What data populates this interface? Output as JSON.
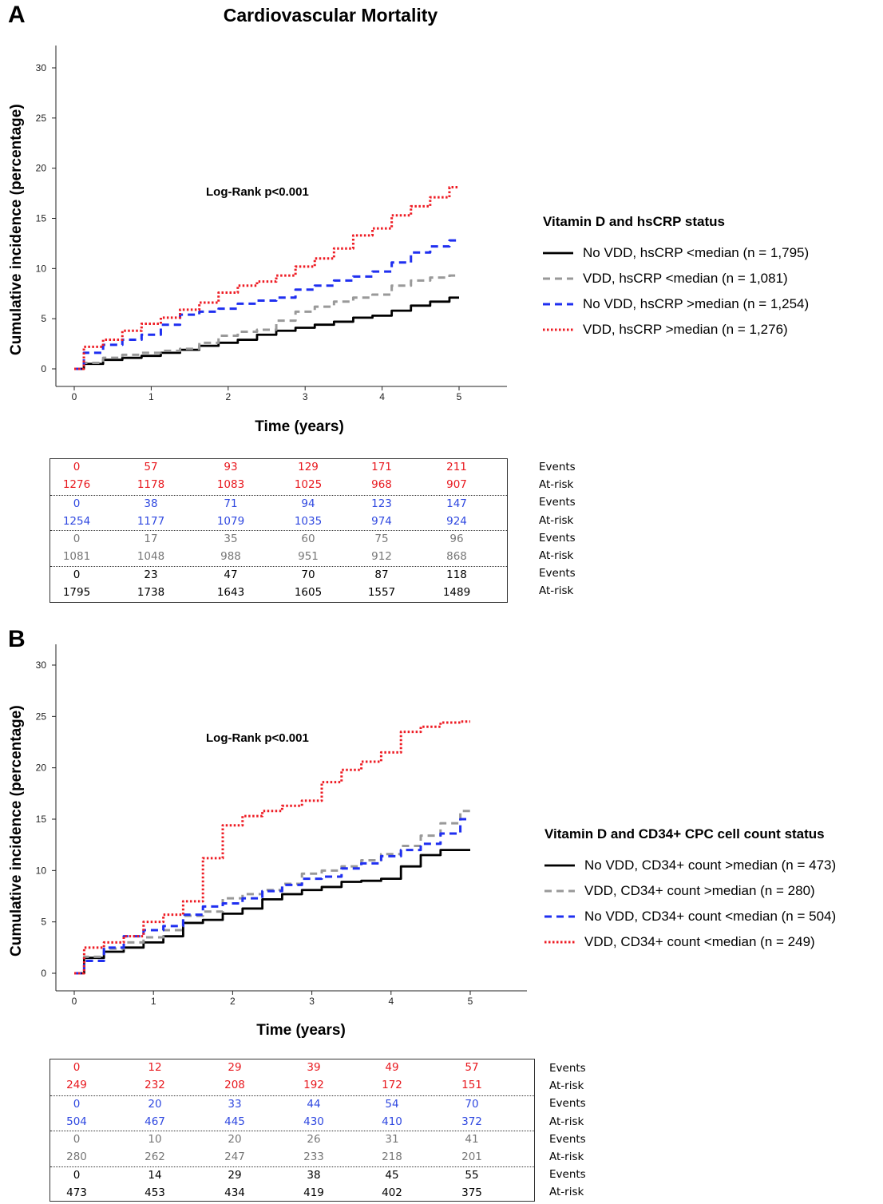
{
  "figure_title": "Cardiovascular Mortality",
  "row_labels": {
    "events": "Events",
    "at_risk": "At-risk"
  },
  "colors": {
    "red": "#ee1c24",
    "blue": "#1f2ff0",
    "gray": "#999999",
    "black": "#000000",
    "table_red": "#e8181e",
    "table_blue": "#2f48e0",
    "table_gray": "#777777"
  },
  "chart_data": [
    {
      "panel": "A",
      "type": "line",
      "subtype": "cumulative-incidence step curves",
      "xlabel": "Time (years)",
      "ylabel": "Cumulative incidence (percentage)",
      "xlim": [
        0,
        5
      ],
      "ylim": [
        0,
        30
      ],
      "xticks": [
        0,
        1,
        2,
        3,
        4,
        5
      ],
      "yticks": [
        0,
        5,
        10,
        15,
        20,
        25,
        30
      ],
      "annotation": "Log-Rank p<0.001",
      "legend_title": "Vitamin D and hsCRP status",
      "legend_position": "right",
      "series": [
        {
          "name": "No VDD, hsCRP <median (n = 1,795)",
          "color": "black",
          "style": "solid",
          "x": [
            0,
            0.25,
            0.5,
            0.75,
            1,
            1.25,
            1.5,
            1.75,
            2,
            2.25,
            2.5,
            2.75,
            3,
            3.25,
            3.5,
            3.75,
            4,
            4.25,
            4.5,
            4.75,
            5
          ],
          "y": [
            0,
            0.5,
            0.9,
            1.1,
            1.3,
            1.6,
            1.9,
            2.3,
            2.6,
            2.9,
            3.4,
            3.8,
            4.1,
            4.4,
            4.7,
            5.1,
            5.3,
            5.8,
            6.3,
            6.7,
            7.1
          ]
        },
        {
          "name": "VDD, hsCRP <median (n = 1,081)",
          "color": "gray",
          "style": "dashed",
          "x": [
            0,
            0.25,
            0.5,
            0.75,
            1,
            1.25,
            1.5,
            1.75,
            2,
            2.25,
            2.5,
            2.75,
            3,
            3.25,
            3.5,
            3.75,
            4,
            4.25,
            4.5,
            4.75,
            5
          ],
          "y": [
            0,
            0.6,
            1.1,
            1.4,
            1.6,
            1.8,
            2.0,
            2.6,
            3.3,
            3.7,
            3.9,
            4.8,
            5.7,
            6.2,
            6.7,
            7.1,
            7.4,
            8.3,
            8.8,
            9.1,
            9.3
          ]
        },
        {
          "name": "No VDD, hsCRP >median (n = 1,254)",
          "color": "blue",
          "style": "dashed",
          "x": [
            0,
            0.25,
            0.5,
            0.75,
            1,
            1.25,
            1.5,
            1.75,
            2,
            2.25,
            2.5,
            2.75,
            3,
            3.25,
            3.5,
            3.75,
            4,
            4.25,
            4.5,
            4.75,
            5
          ],
          "y": [
            0,
            1.6,
            2.4,
            2.9,
            3.4,
            4.4,
            5.4,
            5.7,
            6.0,
            6.5,
            6.8,
            7.1,
            7.9,
            8.3,
            8.8,
            9.2,
            9.7,
            10.6,
            11.6,
            12.2,
            12.8
          ]
        },
        {
          "name": "VDD, hsCRP >median (n = 1,276)",
          "color": "red",
          "style": "dotted",
          "x": [
            0,
            0.25,
            0.5,
            0.75,
            1,
            1.25,
            1.5,
            1.75,
            2,
            2.25,
            2.5,
            2.75,
            3,
            3.25,
            3.5,
            3.75,
            4,
            4.25,
            4.5,
            4.75,
            5
          ],
          "y": [
            0,
            2.2,
            2.9,
            3.8,
            4.5,
            5.1,
            5.9,
            6.6,
            7.6,
            8.3,
            8.7,
            9.3,
            10.2,
            11.0,
            12.0,
            13.3,
            14.0,
            15.3,
            16.2,
            17.1,
            18.1
          ]
        }
      ],
      "risk_table": [
        {
          "color": "table_red",
          "events": [
            0,
            57,
            93,
            129,
            171,
            211
          ],
          "at_risk": [
            1276,
            1178,
            1083,
            1025,
            968,
            907
          ]
        },
        {
          "color": "table_blue",
          "events": [
            0,
            38,
            71,
            94,
            123,
            147
          ],
          "at_risk": [
            1254,
            1177,
            1079,
            1035,
            974,
            924
          ]
        },
        {
          "color": "table_gray",
          "events": [
            0,
            17,
            35,
            60,
            75,
            96
          ],
          "at_risk": [
            1081,
            1048,
            988,
            951,
            912,
            868
          ]
        },
        {
          "color": "black",
          "events": [
            0,
            23,
            47,
            70,
            87,
            118
          ],
          "at_risk": [
            1795,
            1738,
            1643,
            1605,
            1557,
            1489
          ]
        }
      ]
    },
    {
      "panel": "B",
      "type": "line",
      "subtype": "cumulative-incidence step curves",
      "xlabel": "Time (years)",
      "ylabel": "Cumulative incidence (percentage)",
      "xlim": [
        0,
        5
      ],
      "ylim": [
        0,
        30
      ],
      "xticks": [
        0,
        1,
        2,
        3,
        4,
        5
      ],
      "yticks": [
        0,
        5,
        10,
        15,
        20,
        25,
        30
      ],
      "annotation": "Log-Rank p<0.001",
      "legend_title": "Vitamin D and CD34+ CPC cell count status",
      "legend_position": "right",
      "series": [
        {
          "name": "No VDD, CD34+ count >median (n = 473)",
          "color": "black",
          "style": "solid",
          "x": [
            0,
            0.25,
            0.5,
            0.75,
            1,
            1.25,
            1.5,
            1.75,
            2,
            2.25,
            2.5,
            2.75,
            3,
            3.25,
            3.5,
            3.75,
            4,
            4.25,
            4.5,
            4.75,
            5
          ],
          "y": [
            0,
            1.5,
            2.1,
            2.5,
            3.0,
            3.6,
            4.9,
            5.2,
            5.8,
            6.3,
            7.2,
            7.7,
            8.1,
            8.4,
            8.9,
            9.0,
            9.2,
            10.4,
            11.5,
            12.0,
            12.0
          ]
        },
        {
          "name": "VDD, CD34+ count >median (n = 280)",
          "color": "gray",
          "style": "dashed",
          "x": [
            0,
            0.25,
            0.5,
            0.75,
            1,
            1.25,
            1.5,
            1.75,
            2,
            2.25,
            2.5,
            2.75,
            3,
            3.25,
            3.5,
            3.75,
            4,
            4.25,
            4.5,
            4.75,
            5
          ],
          "y": [
            0,
            1.6,
            2.4,
            3.0,
            3.5,
            4.2,
            5.6,
            6.0,
            7.3,
            7.7,
            8.1,
            8.7,
            9.7,
            10.0,
            10.4,
            11.0,
            11.6,
            12.4,
            13.4,
            14.6,
            15.8
          ]
        },
        {
          "name": "No VDD, CD34+ count <median (n = 504)",
          "color": "blue",
          "style": "dashed",
          "x": [
            0,
            0.25,
            0.5,
            0.75,
            1,
            1.25,
            1.5,
            1.75,
            2,
            2.25,
            2.5,
            2.75,
            3,
            3.25,
            3.5,
            3.75,
            4,
            4.25,
            4.5,
            4.75,
            5
          ],
          "y": [
            0,
            1.2,
            2.5,
            3.6,
            4.2,
            4.6,
            5.7,
            6.5,
            6.8,
            7.3,
            8.0,
            8.6,
            9.2,
            9.4,
            10.2,
            10.7,
            11.4,
            12.0,
            12.6,
            13.6,
            15.0
          ]
        },
        {
          "name": "VDD, CD34+ count <median (n = 249)",
          "color": "red",
          "style": "dotted",
          "x": [
            0,
            0.25,
            0.5,
            0.75,
            1,
            1.25,
            1.5,
            1.75,
            2,
            2.25,
            2.5,
            2.75,
            3,
            3.25,
            3.5,
            3.75,
            4,
            4.25,
            4.5,
            4.75,
            5
          ],
          "y": [
            0,
            2.5,
            3.0,
            3.6,
            5.0,
            5.7,
            7.0,
            11.2,
            14.4,
            15.3,
            15.8,
            16.3,
            16.8,
            18.6,
            19.8,
            20.6,
            21.5,
            23.5,
            24.0,
            24.4,
            24.5
          ]
        }
      ],
      "risk_table": [
        {
          "color": "table_red",
          "events": [
            0,
            12,
            29,
            39,
            49,
            57
          ],
          "at_risk": [
            249,
            232,
            208,
            192,
            172,
            151
          ]
        },
        {
          "color": "table_blue",
          "events": [
            0,
            20,
            33,
            44,
            54,
            70
          ],
          "at_risk": [
            504,
            467,
            445,
            430,
            410,
            372
          ]
        },
        {
          "color": "table_gray",
          "events": [
            0,
            10,
            20,
            26,
            31,
            41
          ],
          "at_risk": [
            280,
            262,
            247,
            233,
            218,
            201
          ]
        },
        {
          "color": "black",
          "events": [
            0,
            14,
            29,
            38,
            45,
            55
          ],
          "at_risk": [
            473,
            453,
            434,
            419,
            402,
            375
          ]
        }
      ]
    }
  ]
}
